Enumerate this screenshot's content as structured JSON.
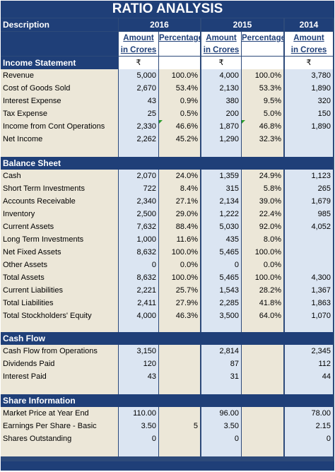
{
  "title": "RATIO ANALYSIS",
  "header": {
    "description": "Description",
    "years": [
      "2016",
      "2015",
      "2014"
    ]
  },
  "subheader": {
    "amount": "Amount",
    "percentage": "Percentage",
    "in_crores": "in Crores"
  },
  "rupee": "₹",
  "sections": [
    {
      "name": "Income Statement",
      "rows": [
        {
          "label": "Revenue",
          "v": [
            "5,000",
            "100.0%",
            "4,000",
            "100.0%",
            "3,780"
          ]
        },
        {
          "label": "Cost of Goods Sold",
          "v": [
            "2,670",
            "53.4%",
            "2,130",
            "53.3%",
            "1,890"
          ]
        },
        {
          "label": "Interest Expense",
          "v": [
            "43",
            "0.9%",
            "380",
            "9.5%",
            "320"
          ]
        },
        {
          "label": "Tax Expense",
          "v": [
            "25",
            "0.5%",
            "200",
            "5.0%",
            "150"
          ]
        },
        {
          "label": "Income from Cont Operations",
          "v": [
            "2,330",
            "46.6%",
            "1,870",
            "46.8%",
            "1,890"
          ]
        },
        {
          "label": "Net Income",
          "v": [
            "2,262",
            "45.2%",
            "1,290",
            "32.3%",
            ""
          ]
        }
      ]
    },
    {
      "name": "Balance Sheet",
      "rows": [
        {
          "label": "Cash",
          "v": [
            "2,070",
            "24.0%",
            "1,359",
            "24.9%",
            "1,123"
          ]
        },
        {
          "label": "Short Term Investments",
          "v": [
            "722",
            "8.4%",
            "315",
            "5.8%",
            "265"
          ]
        },
        {
          "label": "Accounts Receivable",
          "v": [
            "2,340",
            "27.1%",
            "2,134",
            "39.0%",
            "1,679"
          ]
        },
        {
          "label": "Inventory",
          "v": [
            "2,500",
            "29.0%",
            "1,222",
            "22.4%",
            "985"
          ]
        },
        {
          "label": "Current Assets",
          "v": [
            "7,632",
            "88.4%",
            "5,030",
            "92.0%",
            "4,052"
          ]
        },
        {
          "label": "Long Term Investments",
          "v": [
            "1,000",
            "11.6%",
            "435",
            "8.0%",
            ""
          ]
        },
        {
          "label": "Net Fixed Assets",
          "v": [
            "8,632",
            "100.0%",
            "5,465",
            "100.0%",
            ""
          ]
        },
        {
          "label": "Other Assets",
          "v": [
            "0",
            "0.0%",
            "0",
            "0.0%",
            ""
          ]
        },
        {
          "label": "Total Assets",
          "v": [
            "8,632",
            "100.0%",
            "5,465",
            "100.0%",
            "4,300"
          ]
        },
        {
          "label": "Current Liabilities",
          "v": [
            "2,221",
            "25.7%",
            "1,543",
            "28.2%",
            "1,367"
          ]
        },
        {
          "label": "Total Liabilities",
          "v": [
            "2,411",
            "27.9%",
            "2,285",
            "41.8%",
            "1,863"
          ]
        },
        {
          "label": "Total Stockholders' Equity",
          "v": [
            "4,000",
            "46.3%",
            "3,500",
            "64.0%",
            "1,070"
          ]
        }
      ]
    },
    {
      "name": "Cash Flow",
      "rows": [
        {
          "label": "Cash Flow from Operations",
          "v": [
            "3,150",
            "",
            "2,814",
            "",
            "2,345"
          ]
        },
        {
          "label": "Dividends Paid",
          "v": [
            "120",
            "",
            "87",
            "",
            "112"
          ]
        },
        {
          "label": "Interest Paid",
          "v": [
            "43",
            "",
            "31",
            "",
            "44"
          ]
        }
      ]
    },
    {
      "name": "Share Information",
      "rows": [
        {
          "label": "Market Price at Year End",
          "v": [
            "110.00",
            "",
            "96.00",
            "",
            "78.00"
          ]
        },
        {
          "label": "Earnings Per Share - Basic",
          "v": [
            "3.50",
            "5",
            "3.50",
            "",
            "2.15"
          ]
        },
        {
          "label": "Shares Outstanding",
          "v": [
            "0",
            "",
            "0",
            "",
            "0"
          ]
        }
      ]
    }
  ]
}
